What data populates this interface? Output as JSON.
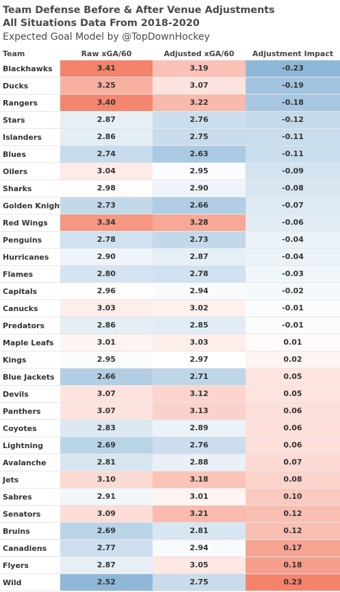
{
  "title_line1": "Team Defense Before & After Venue Adjustments",
  "title_line2": "All Situations Data From 2018-2020",
  "subtitle": "Expected Goal Model by @TopDownHockey",
  "columns": [
    "Team",
    "Raw xGA/60",
    "Adjusted xGA/60",
    "Adjustment Impact"
  ],
  "colors": {
    "high": "#f4836c",
    "mid": "#ffffff",
    "low": "#8fb8d8"
  },
  "chart_data": {
    "type": "table",
    "rows": [
      {
        "team": "Blackhawks",
        "raw": "3.41",
        "adjusted": "3.19",
        "impact": "-0.23"
      },
      {
        "team": "Ducks",
        "raw": "3.25",
        "adjusted": "3.07",
        "impact": "-0.19"
      },
      {
        "team": "Rangers",
        "raw": "3.40",
        "adjusted": "3.22",
        "impact": "-0.18"
      },
      {
        "team": "Stars",
        "raw": "2.87",
        "adjusted": "2.76",
        "impact": "-0.12"
      },
      {
        "team": "Islanders",
        "raw": "2.86",
        "adjusted": "2.75",
        "impact": "-0.11"
      },
      {
        "team": "Blues",
        "raw": "2.74",
        "adjusted": "2.63",
        "impact": "-0.11"
      },
      {
        "team": "Oilers",
        "raw": "3.04",
        "adjusted": "2.95",
        "impact": "-0.09"
      },
      {
        "team": "Sharks",
        "raw": "2.98",
        "adjusted": "2.90",
        "impact": "-0.08"
      },
      {
        "team": "Golden Knights",
        "raw": "2.73",
        "adjusted": "2.66",
        "impact": "-0.07"
      },
      {
        "team": "Red Wings",
        "raw": "3.34",
        "adjusted": "3.28",
        "impact": "-0.06"
      },
      {
        "team": "Penguins",
        "raw": "2.78",
        "adjusted": "2.73",
        "impact": "-0.04"
      },
      {
        "team": "Hurricanes",
        "raw": "2.90",
        "adjusted": "2.87",
        "impact": "-0.04"
      },
      {
        "team": "Flames",
        "raw": "2.80",
        "adjusted": "2.78",
        "impact": "-0.03"
      },
      {
        "team": "Capitals",
        "raw": "2.96",
        "adjusted": "2.94",
        "impact": "-0.02"
      },
      {
        "team": "Canucks",
        "raw": "3.03",
        "adjusted": "3.02",
        "impact": "-0.01"
      },
      {
        "team": "Predators",
        "raw": "2.86",
        "adjusted": "2.85",
        "impact": "-0.01"
      },
      {
        "team": "Maple Leafs",
        "raw": "3.01",
        "adjusted": "3.03",
        "impact": "0.01"
      },
      {
        "team": "Kings",
        "raw": "2.95",
        "adjusted": "2.97",
        "impact": "0.02"
      },
      {
        "team": "Blue Jackets",
        "raw": "2.66",
        "adjusted": "2.71",
        "impact": "0.05"
      },
      {
        "team": "Devils",
        "raw": "3.07",
        "adjusted": "3.12",
        "impact": "0.05"
      },
      {
        "team": "Panthers",
        "raw": "3.07",
        "adjusted": "3.13",
        "impact": "0.06"
      },
      {
        "team": "Coyotes",
        "raw": "2.83",
        "adjusted": "2.89",
        "impact": "0.06"
      },
      {
        "team": "Lightning",
        "raw": "2.69",
        "adjusted": "2.76",
        "impact": "0.06"
      },
      {
        "team": "Avalanche",
        "raw": "2.81",
        "adjusted": "2.88",
        "impact": "0.07"
      },
      {
        "team": "Jets",
        "raw": "3.10",
        "adjusted": "3.18",
        "impact": "0.08"
      },
      {
        "team": "Sabres",
        "raw": "2.91",
        "adjusted": "3.01",
        "impact": "0.10"
      },
      {
        "team": "Senators",
        "raw": "3.09",
        "adjusted": "3.21",
        "impact": "0.12"
      },
      {
        "team": "Bruins",
        "raw": "2.69",
        "adjusted": "2.81",
        "impact": "0.12"
      },
      {
        "team": "Canadiens",
        "raw": "2.77",
        "adjusted": "2.94",
        "impact": "0.17"
      },
      {
        "team": "Flyers",
        "raw": "2.87",
        "adjusted": "3.05",
        "impact": "0.18"
      },
      {
        "team": "Wild",
        "raw": "2.52",
        "adjusted": "2.75",
        "impact": "0.23"
      }
    ]
  }
}
